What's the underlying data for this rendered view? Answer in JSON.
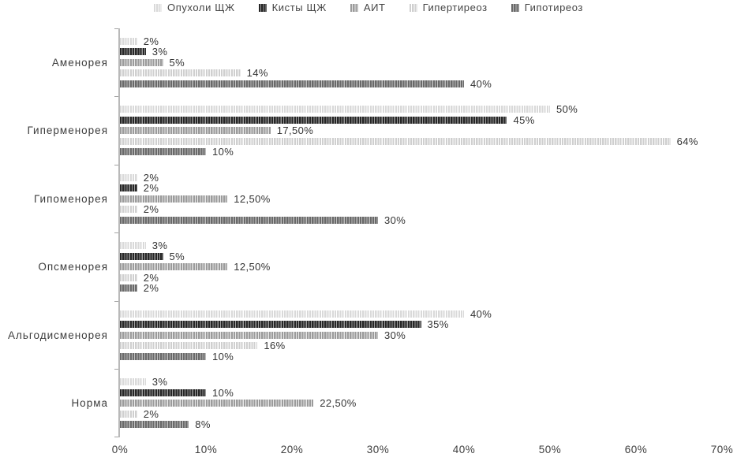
{
  "legend": {
    "items": [
      "Опухоли ЩЖ",
      "Кисты ЩЖ",
      "АИТ",
      "Гипертиреоз",
      "Гипотиреоз"
    ]
  },
  "chart_data": {
    "type": "bar",
    "orientation": "horizontal",
    "title": "",
    "xlabel": "",
    "ylabel": "",
    "xlim": [
      0,
      70
    ],
    "grid": false,
    "legend_position": "top",
    "categories": [
      "Аменорея",
      "Гиперменорея",
      "Гипоменорея",
      "Опсменорея",
      "Альгодисменорея",
      "Норма"
    ],
    "series": [
      {
        "name": "Опухоли ЩЖ",
        "values": [
          2,
          50,
          2,
          3,
          40,
          3
        ],
        "labels": [
          "2%",
          "50%",
          "2%",
          "3%",
          "40%",
          "3%"
        ]
      },
      {
        "name": "Кисты ЩЖ",
        "values": [
          3,
          45,
          2,
          5,
          35,
          10
        ],
        "labels": [
          "3%",
          "45%",
          "2%",
          "5%",
          "35%",
          "10%"
        ]
      },
      {
        "name": "АИТ",
        "values": [
          5,
          17.5,
          12.5,
          12.5,
          30,
          22.5
        ],
        "labels": [
          "5%",
          "17,50%",
          "12,50%",
          "12,50%",
          "30%",
          "22,50%"
        ]
      },
      {
        "name": "Гипертиреоз",
        "values": [
          14,
          64,
          2,
          2,
          16,
          2
        ],
        "labels": [
          "14%",
          "64%",
          "2%",
          "2%",
          "16%",
          "2%"
        ]
      },
      {
        "name": "Гипотиреоз",
        "values": [
          40,
          10,
          30,
          2,
          10,
          8
        ],
        "labels": [
          "40%",
          "10%",
          "30%",
          "2%",
          "10%",
          "8%"
        ]
      }
    ],
    "x_ticks": [
      "0%",
      "10%",
      "20%",
      "30%",
      "40%",
      "50%",
      "60%",
      "70%"
    ]
  },
  "colors": {
    "series_patterns": [
      {
        "name": "Опухоли ЩЖ",
        "base": "#d9d9d9",
        "stripe": "#ffffff"
      },
      {
        "name": "Кисты ЩЖ",
        "base": "#262626",
        "stripe": "#9a9a9a"
      },
      {
        "name": "АИТ",
        "base": "#9b9b9b",
        "stripe": "#e8e8e8"
      },
      {
        "name": "Гипертиреоз",
        "base": "#cfcfcf",
        "stripe": "#ffffff"
      },
      {
        "name": "Гипотиреоз",
        "base": "#696969",
        "stripe": "#bdbdbd"
      },
      {
        "axis_line": "#b9b9b9",
        "tick": "#a3a3a3",
        "text": "#3d3d3d",
        "label_text": "#333333"
      }
    ]
  }
}
